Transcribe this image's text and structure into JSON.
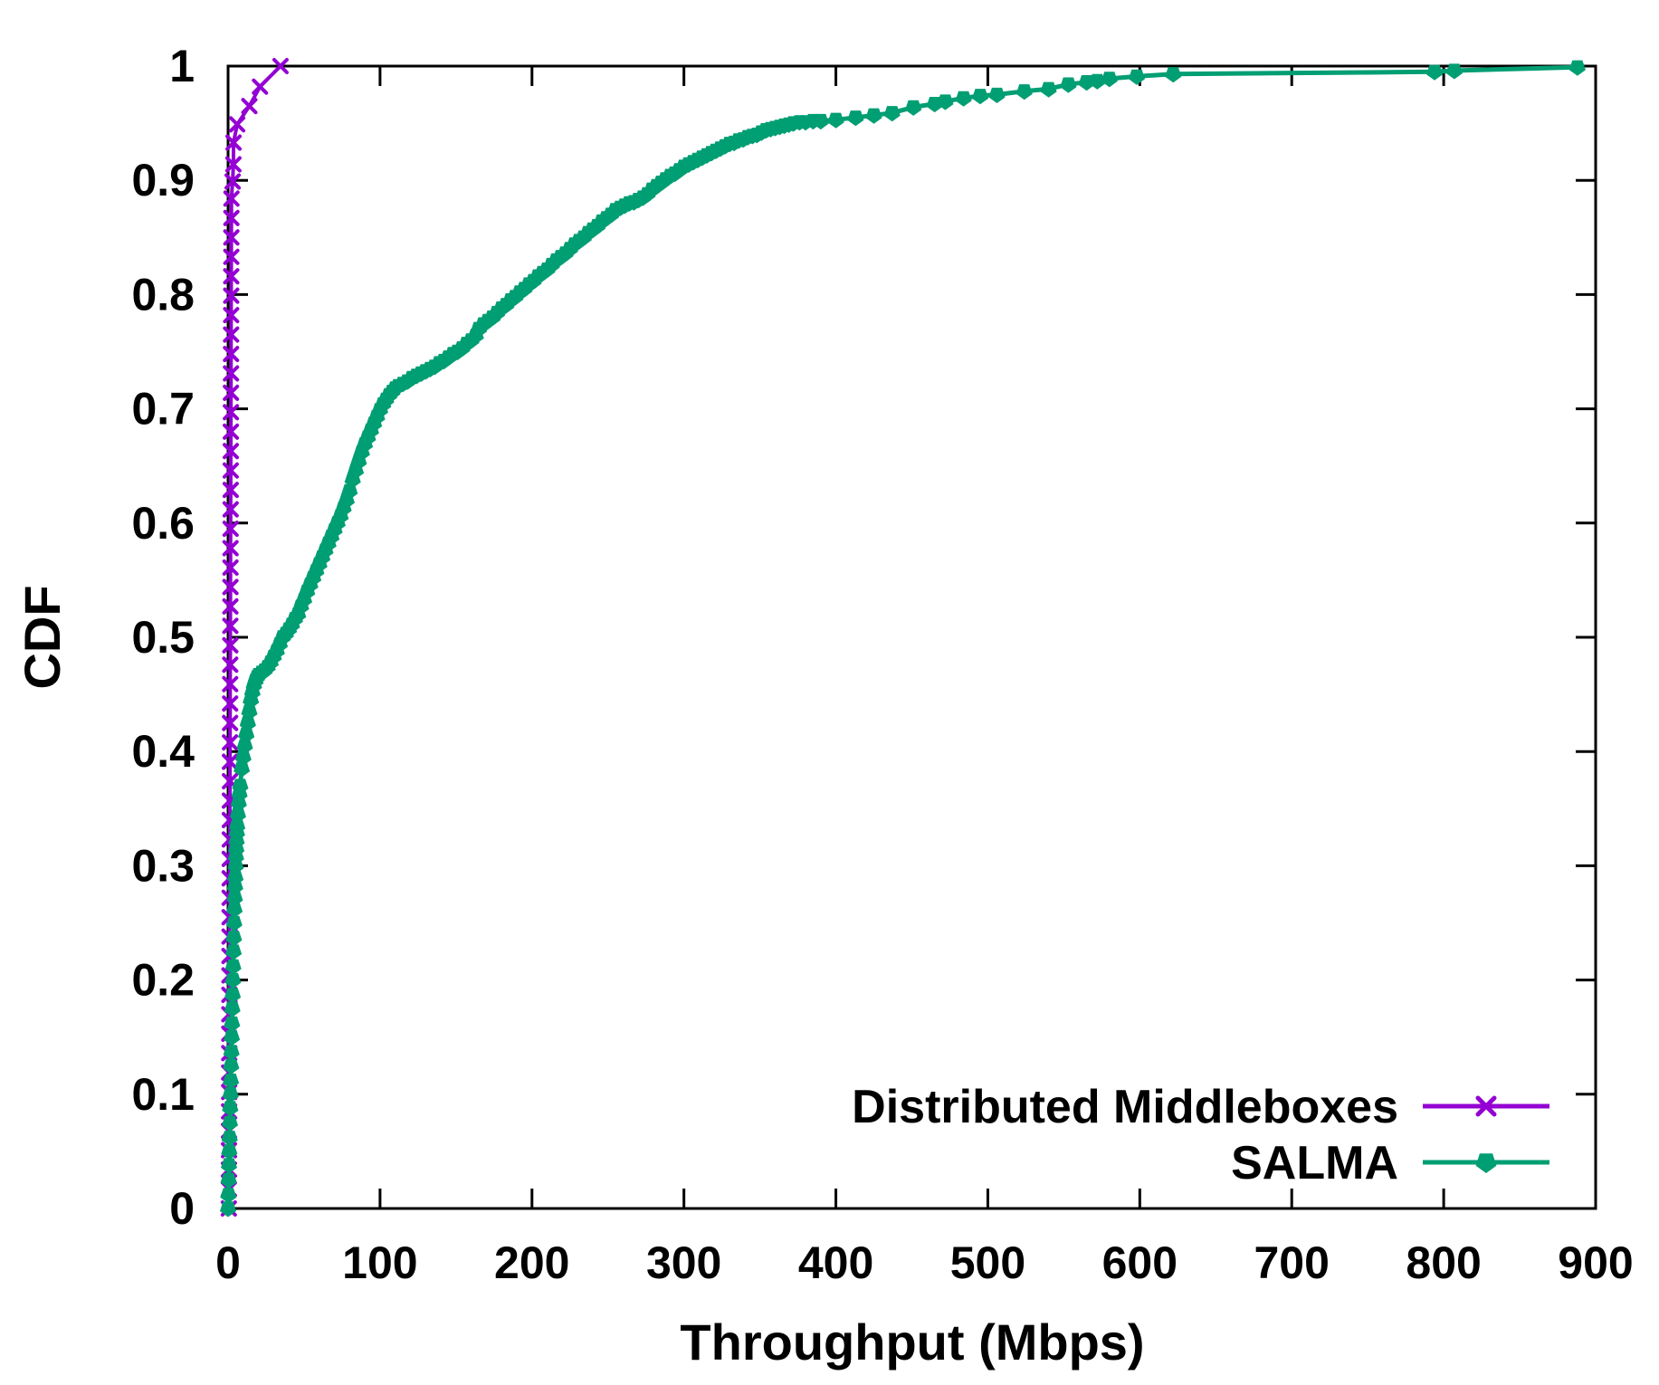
{
  "figure": {
    "background": "#ffffff",
    "border_color": "#000000",
    "text_color": "#000000"
  },
  "chart_data": {
    "type": "line",
    "title": "",
    "xlabel": "Throughput (Mbps)",
    "ylabel": "CDF",
    "xlim": [
      0,
      900
    ],
    "ylim": [
      0,
      1
    ],
    "grid": false,
    "legend_position": "inside-bottom-right",
    "xticks": [
      0,
      100,
      200,
      300,
      400,
      500,
      600,
      700,
      800,
      900
    ],
    "xtick_labels": [
      "0",
      "100",
      "200",
      "300",
      "400",
      "500",
      "600",
      "700",
      "800",
      "900"
    ],
    "yticks": [
      0,
      0.1,
      0.2,
      0.3,
      0.4,
      0.5,
      0.6,
      0.7,
      0.8,
      0.9,
      1
    ],
    "ytick_labels": [
      "0",
      "0.1",
      "0.2",
      "0.3",
      "0.4",
      "0.5",
      "0.6",
      "0.7",
      "0.8",
      "0.9",
      "1"
    ],
    "series": [
      {
        "name": "Distributed Middleboxes",
        "color": "#9400d3",
        "marker": "x-cross",
        "points": [
          [
            0.5,
            0
          ],
          [
            0.53,
            0.017
          ],
          [
            0.57,
            0.034
          ],
          [
            0.6,
            0.051
          ],
          [
            0.63,
            0.068
          ],
          [
            0.67,
            0.085
          ],
          [
            0.7,
            0.102
          ],
          [
            0.73,
            0.119
          ],
          [
            0.76,
            0.136
          ],
          [
            0.8,
            0.153
          ],
          [
            0.83,
            0.17
          ],
          [
            0.86,
            0.187
          ],
          [
            0.9,
            0.204
          ],
          [
            0.93,
            0.221
          ],
          [
            0.96,
            0.238
          ],
          [
            1,
            0.255
          ],
          [
            1.03,
            0.272
          ],
          [
            1.06,
            0.289
          ],
          [
            1.09,
            0.306
          ],
          [
            1.13,
            0.323
          ],
          [
            1.16,
            0.34
          ],
          [
            1.19,
            0.357
          ],
          [
            1.23,
            0.374
          ],
          [
            1.26,
            0.391
          ],
          [
            1.29,
            0.408
          ],
          [
            1.33,
            0.425
          ],
          [
            1.36,
            0.442
          ],
          [
            1.39,
            0.459
          ],
          [
            1.42,
            0.476
          ],
          [
            1.46,
            0.493
          ],
          [
            1.49,
            0.51
          ],
          [
            1.52,
            0.527
          ],
          [
            1.56,
            0.544
          ],
          [
            1.59,
            0.561
          ],
          [
            1.62,
            0.578
          ],
          [
            1.66,
            0.595
          ],
          [
            1.69,
            0.612
          ],
          [
            1.72,
            0.629
          ],
          [
            1.75,
            0.646
          ],
          [
            1.79,
            0.663
          ],
          [
            1.82,
            0.68
          ],
          [
            1.85,
            0.697
          ],
          [
            1.89,
            0.714
          ],
          [
            1.92,
            0.731
          ],
          [
            1.95,
            0.748
          ],
          [
            1.99,
            0.765
          ],
          [
            2.02,
            0.782
          ],
          [
            2.05,
            0.799
          ],
          [
            2.08,
            0.816
          ],
          [
            2.12,
            0.833
          ],
          [
            2.15,
            0.85
          ],
          [
            2.18,
            0.867
          ],
          [
            2.22,
            0.884
          ],
          [
            3,
            0.899
          ],
          [
            3.5,
            0.914
          ],
          [
            3.6,
            0.933
          ],
          [
            6,
            0.949
          ],
          [
            14,
            0.965
          ],
          [
            21,
            0.982
          ],
          [
            34.5,
            1
          ]
        ]
      },
      {
        "name": "SALMA",
        "color": "#009e73",
        "marker": "pentagon-down",
        "points": [
          [
            0,
            0
          ],
          [
            0.2,
            0.012
          ],
          [
            0.4,
            0.025
          ],
          [
            0.6,
            0.038
          ],
          [
            0.8,
            0.05
          ],
          [
            1,
            0.062
          ],
          [
            1.2,
            0.075
          ],
          [
            1.4,
            0.088
          ],
          [
            1.6,
            0.1
          ],
          [
            1.8,
            0.112
          ],
          [
            2,
            0.125
          ],
          [
            2.2,
            0.137
          ],
          [
            2.4,
            0.15
          ],
          [
            2.6,
            0.162
          ],
          [
            2.8,
            0.175
          ],
          [
            3,
            0.187
          ],
          [
            3.2,
            0.2
          ],
          [
            3.4,
            0.212
          ],
          [
            3.6,
            0.225
          ],
          [
            3.8,
            0.237
          ],
          [
            4,
            0.25
          ],
          [
            4.2,
            0.262
          ],
          [
            4.4,
            0.272
          ],
          [
            4.6,
            0.282
          ],
          [
            4.8,
            0.29
          ],
          [
            5,
            0.3
          ],
          [
            5.2,
            0.308
          ],
          [
            5.4,
            0.315
          ],
          [
            5.6,
            0.322
          ],
          [
            5.8,
            0.329
          ],
          [
            6,
            0.335
          ],
          [
            6.5,
            0.345
          ],
          [
            7,
            0.355
          ],
          [
            7.5,
            0.363
          ],
          [
            8,
            0.37
          ],
          [
            9,
            0.385
          ],
          [
            10,
            0.395
          ],
          [
            11,
            0.405
          ],
          [
            12,
            0.415
          ],
          [
            13,
            0.425
          ],
          [
            14,
            0.435
          ],
          [
            15,
            0.445
          ],
          [
            16,
            0.452
          ],
          [
            17,
            0.458
          ],
          [
            18,
            0.462
          ],
          [
            19,
            0.465
          ],
          [
            20,
            0.467
          ],
          [
            22,
            0.469
          ],
          [
            24,
            0.471
          ],
          [
            26,
            0.474
          ],
          [
            28,
            0.478
          ],
          [
            30,
            0.483
          ],
          [
            32,
            0.488
          ],
          [
            34,
            0.494
          ],
          [
            36,
            0.5
          ],
          [
            38,
            0.503
          ],
          [
            40,
            0.507
          ],
          [
            42,
            0.511
          ],
          [
            44,
            0.516
          ],
          [
            46,
            0.52
          ],
          [
            48,
            0.527
          ],
          [
            50,
            0.533
          ],
          [
            52,
            0.54
          ],
          [
            54,
            0.546
          ],
          [
            56,
            0.552
          ],
          [
            58,
            0.558
          ],
          [
            60,
            0.564
          ],
          [
            62,
            0.57
          ],
          [
            64,
            0.576
          ],
          [
            66,
            0.582
          ],
          [
            68,
            0.588
          ],
          [
            70,
            0.594
          ],
          [
            72,
            0.6
          ],
          [
            74,
            0.606
          ],
          [
            76,
            0.613
          ],
          [
            78,
            0.62
          ],
          [
            80,
            0.628
          ],
          [
            82,
            0.638
          ],
          [
            84,
            0.646
          ],
          [
            86,
            0.654
          ],
          [
            88,
            0.662
          ],
          [
            90,
            0.669
          ],
          [
            92,
            0.675
          ],
          [
            94,
            0.681
          ],
          [
            96,
            0.687
          ],
          [
            98,
            0.693
          ],
          [
            100,
            0.699
          ],
          [
            102,
            0.704
          ],
          [
            104,
            0.708
          ],
          [
            106,
            0.712
          ],
          [
            108,
            0.715
          ],
          [
            110,
            0.718
          ],
          [
            112,
            0.72
          ],
          [
            115,
            0.722
          ],
          [
            118,
            0.724
          ],
          [
            121,
            0.727
          ],
          [
            124,
            0.729
          ],
          [
            127,
            0.731
          ],
          [
            130,
            0.733
          ],
          [
            133,
            0.735
          ],
          [
            136,
            0.737
          ],
          [
            139,
            0.74
          ],
          [
            142,
            0.742
          ],
          [
            145,
            0.745
          ],
          [
            148,
            0.748
          ],
          [
            151,
            0.75
          ],
          [
            154,
            0.753
          ],
          [
            157,
            0.757
          ],
          [
            160,
            0.76
          ],
          [
            163,
            0.764
          ],
          [
            165,
            0.77
          ],
          [
            168,
            0.774
          ],
          [
            171,
            0.777
          ],
          [
            174,
            0.78
          ],
          [
            177,
            0.784
          ],
          [
            180,
            0.788
          ],
          [
            183,
            0.791
          ],
          [
            186,
            0.795
          ],
          [
            189,
            0.798
          ],
          [
            192,
            0.802
          ],
          [
            195,
            0.805
          ],
          [
            198,
            0.809
          ],
          [
            201,
            0.812
          ],
          [
            204,
            0.816
          ],
          [
            207,
            0.819
          ],
          [
            210,
            0.822
          ],
          [
            213,
            0.826
          ],
          [
            216,
            0.83
          ],
          [
            219,
            0.833
          ],
          [
            222,
            0.836
          ],
          [
            225,
            0.84
          ],
          [
            228,
            0.844
          ],
          [
            231,
            0.847
          ],
          [
            234,
            0.85
          ],
          [
            237,
            0.854
          ],
          [
            240,
            0.857
          ],
          [
            243,
            0.86
          ],
          [
            246,
            0.864
          ],
          [
            249,
            0.867
          ],
          [
            252,
            0.87
          ],
          [
            255,
            0.874
          ],
          [
            258,
            0.876
          ],
          [
            261,
            0.878
          ],
          [
            264,
            0.88
          ],
          [
            267,
            0.881
          ],
          [
            270,
            0.883
          ],
          [
            273,
            0.885
          ],
          [
            276,
            0.888
          ],
          [
            279,
            0.892
          ],
          [
            282,
            0.895
          ],
          [
            285,
            0.898
          ],
          [
            288,
            0.901
          ],
          [
            291,
            0.904
          ],
          [
            294,
            0.906
          ],
          [
            297,
            0.909
          ],
          [
            300,
            0.912
          ],
          [
            303,
            0.914
          ],
          [
            306,
            0.916
          ],
          [
            309,
            0.918
          ],
          [
            312,
            0.92
          ],
          [
            315,
            0.922
          ],
          [
            318,
            0.924
          ],
          [
            321,
            0.926
          ],
          [
            324,
            0.928
          ],
          [
            327,
            0.93
          ],
          [
            330,
            0.932
          ],
          [
            333,
            0.933
          ],
          [
            336,
            0.935
          ],
          [
            339,
            0.936
          ],
          [
            342,
            0.938
          ],
          [
            345,
            0.939
          ],
          [
            348,
            0.94
          ],
          [
            351,
            0.942
          ],
          [
            354,
            0.944
          ],
          [
            357,
            0.945
          ],
          [
            360,
            0.946
          ],
          [
            363,
            0.947
          ],
          [
            366,
            0.948
          ],
          [
            369,
            0.949
          ],
          [
            372,
            0.95
          ],
          [
            376,
            0.951
          ],
          [
            380,
            0.951
          ],
          [
            385,
            0.952
          ],
          [
            390,
            0.952
          ],
          [
            400,
            0.953
          ],
          [
            413,
            0.955
          ],
          [
            425,
            0.957
          ],
          [
            437,
            0.959
          ],
          [
            451,
            0.964
          ],
          [
            465,
            0.967
          ],
          [
            472,
            0.969
          ],
          [
            484,
            0.972
          ],
          [
            495,
            0.974
          ],
          [
            506,
            0.975
          ],
          [
            524,
            0.978
          ],
          [
            540,
            0.98
          ],
          [
            553,
            0.984
          ],
          [
            565,
            0.986
          ],
          [
            572,
            0.987
          ],
          [
            580,
            0.989
          ],
          [
            598,
            0.991
          ],
          [
            622,
            0.993
          ],
          [
            794,
            0.995
          ],
          [
            807,
            0.996
          ],
          [
            888,
            0.999
          ]
        ]
      }
    ]
  }
}
